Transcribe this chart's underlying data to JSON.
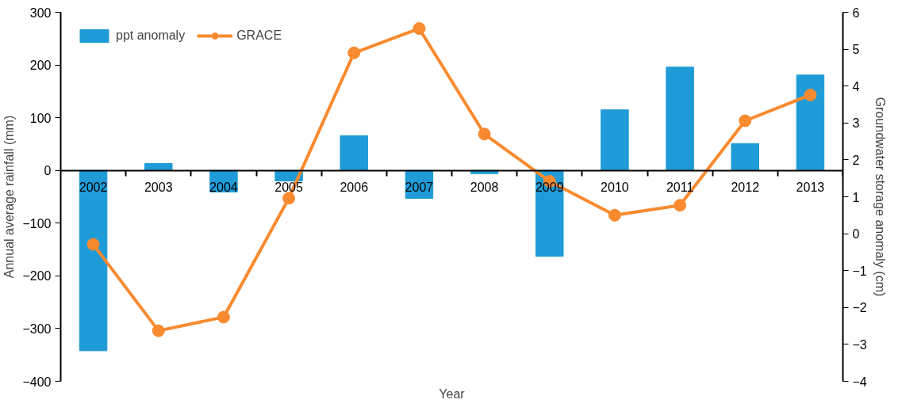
{
  "chart_data": {
    "type": "bar",
    "xlabel": "Year",
    "ylabel": "Annual average rainfall (mm)",
    "y2label": "Groundwater storage anomaly (cm)",
    "categories": [
      "2002",
      "2003",
      "2004",
      "2005",
      "2006",
      "2007",
      "2008",
      "2009",
      "2010",
      "2011",
      "2012",
      "2013"
    ],
    "series": [
      {
        "name": "ppt anomaly",
        "color": "#1f9bd7",
        "values": [
          -342,
          13,
          -41,
          -20,
          66,
          -53,
          -6,
          -163,
          115,
          196,
          51,
          181
        ]
      },
      {
        "name": "GRACE",
        "type": "line",
        "axis": "y2",
        "color": "#f98a2f",
        "marker": "circle",
        "values": [
          -0.29,
          -2.63,
          -2.26,
          0.96,
          4.9,
          5.56,
          2.7,
          1.42,
          0.5,
          0.77,
          3.06,
          3.76
        ]
      }
    ],
    "ylim": [
      -400,
      300
    ],
    "yticks": [
      -400,
      -300,
      -200,
      -100,
      0,
      100,
      200,
      300
    ],
    "y2lim": [
      -4,
      6
    ],
    "y2ticks": [
      -4,
      -3,
      -2,
      -1,
      0,
      1,
      2,
      3,
      4,
      5,
      6
    ],
    "grid": false,
    "legend": "top left"
  }
}
